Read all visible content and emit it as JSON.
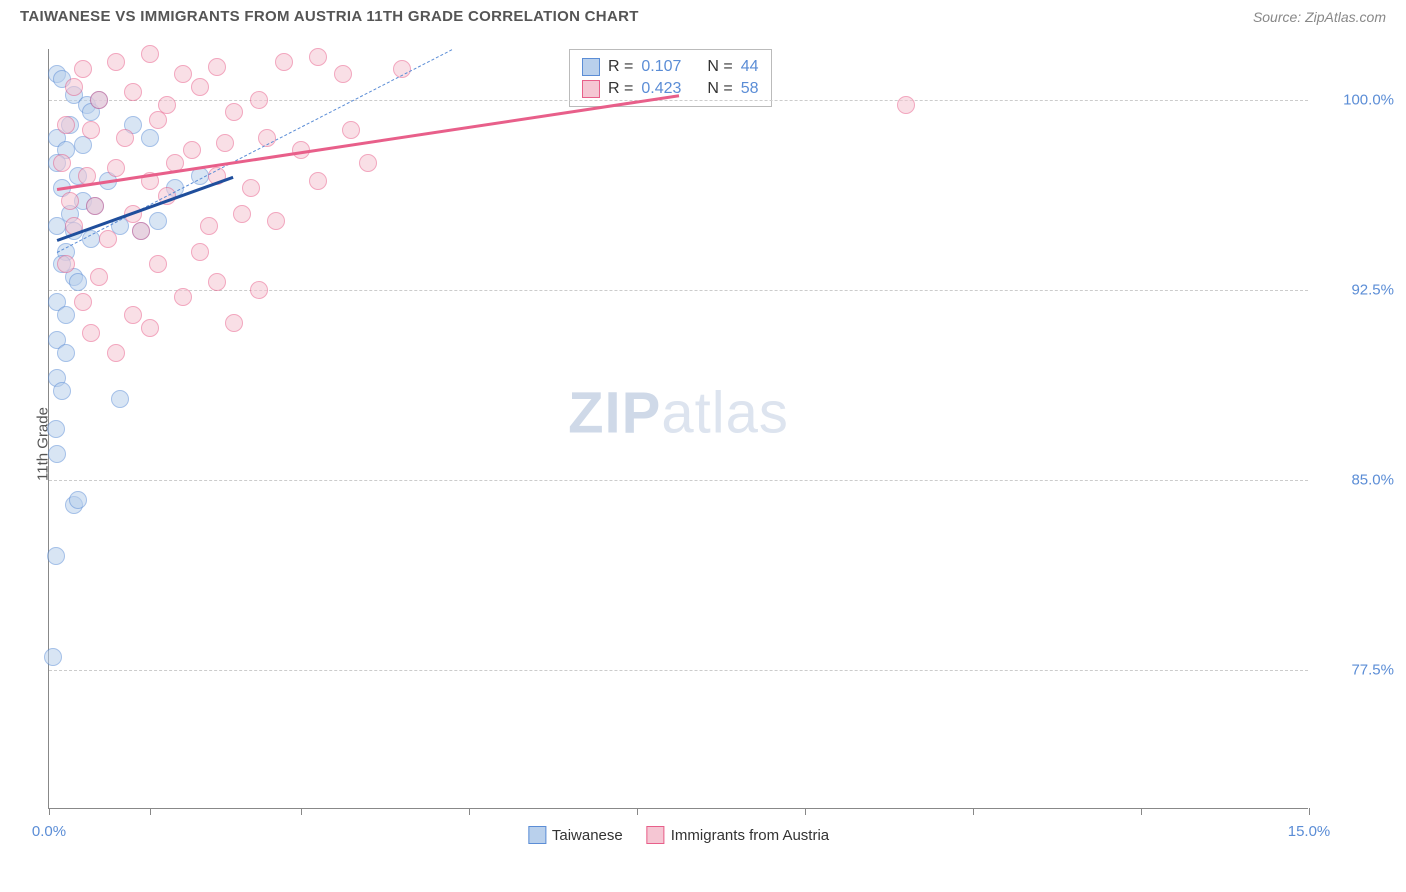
{
  "header": {
    "title": "TAIWANESE VS IMMIGRANTS FROM AUSTRIA 11TH GRADE CORRELATION CHART",
    "source_label": "Source: ZipAtlas.com"
  },
  "chart": {
    "type": "scatter",
    "ylabel": "11th Grade",
    "xlim": [
      0.0,
      15.0
    ],
    "ylim": [
      72.0,
      102.0
    ],
    "grid_color": "#cccccc",
    "axis_color": "#888888",
    "background_color": "#ffffff",
    "ytick_labels": [
      "77.5%",
      "85.0%",
      "92.5%",
      "100.0%"
    ],
    "ytick_values": [
      77.5,
      85.0,
      92.5,
      100.0
    ],
    "xtick_values": [
      0,
      1.2,
      3.0,
      5.0,
      7.0,
      9.0,
      11.0,
      13.0,
      15.0
    ],
    "xtick_labels": {
      "left": "0.0%",
      "right": "15.0%"
    },
    "watermark": "ZIPatlas",
    "series": [
      {
        "name": "Taiwanese",
        "fill": "#b9d0ec",
        "stroke": "#5b8dd6",
        "R": "0.107",
        "N": "44",
        "trend": {
          "x1": 0.1,
          "y1": 94.5,
          "x2": 2.2,
          "y2": 97.0,
          "color": "#1f4e9c"
        },
        "points": [
          [
            0.1,
            101.0
          ],
          [
            0.15,
            100.8
          ],
          [
            0.3,
            100.2
          ],
          [
            0.45,
            99.8
          ],
          [
            0.25,
            99.0
          ],
          [
            0.5,
            99.5
          ],
          [
            0.1,
            98.5
          ],
          [
            0.2,
            98.0
          ],
          [
            0.4,
            98.2
          ],
          [
            0.6,
            100.0
          ],
          [
            0.1,
            97.5
          ],
          [
            0.35,
            97.0
          ],
          [
            0.15,
            96.5
          ],
          [
            0.4,
            96.0
          ],
          [
            0.25,
            95.5
          ],
          [
            0.55,
            95.8
          ],
          [
            0.1,
            95.0
          ],
          [
            0.3,
            94.8
          ],
          [
            0.5,
            94.5
          ],
          [
            0.7,
            96.8
          ],
          [
            0.2,
            94.0
          ],
          [
            0.85,
            95.0
          ],
          [
            1.1,
            94.8
          ],
          [
            1.3,
            95.2
          ],
          [
            0.15,
            93.5
          ],
          [
            0.3,
            93.0
          ],
          [
            0.1,
            92.0
          ],
          [
            0.2,
            91.5
          ],
          [
            0.35,
            92.8
          ],
          [
            0.1,
            90.5
          ],
          [
            0.2,
            90.0
          ],
          [
            0.1,
            89.0
          ],
          [
            0.15,
            88.5
          ],
          [
            0.08,
            87.0
          ],
          [
            0.85,
            88.2
          ],
          [
            0.1,
            86.0
          ],
          [
            0.3,
            84.0
          ],
          [
            0.35,
            84.2
          ],
          [
            0.08,
            82.0
          ],
          [
            0.05,
            78.0
          ],
          [
            1.5,
            96.5
          ],
          [
            1.8,
            97.0
          ],
          [
            1.0,
            99.0
          ],
          [
            1.2,
            98.5
          ]
        ]
      },
      {
        "name": "Immigrants from Austria",
        "fill": "#f5c6d3",
        "stroke": "#e85f8a",
        "R": "0.423",
        "N": "58",
        "trend": {
          "x1": 0.1,
          "y1": 96.5,
          "x2": 7.5,
          "y2": 100.2,
          "color": "#e85f8a"
        },
        "points": [
          [
            0.4,
            101.2
          ],
          [
            0.8,
            101.5
          ],
          [
            1.2,
            101.8
          ],
          [
            1.6,
            101.0
          ],
          [
            2.0,
            101.3
          ],
          [
            2.8,
            101.5
          ],
          [
            3.2,
            101.7
          ],
          [
            3.5,
            101.0
          ],
          [
            4.2,
            101.2
          ],
          [
            0.3,
            100.5
          ],
          [
            0.6,
            100.0
          ],
          [
            1.0,
            100.3
          ],
          [
            1.4,
            99.8
          ],
          [
            1.8,
            100.5
          ],
          [
            2.2,
            99.5
          ],
          [
            2.5,
            100.0
          ],
          [
            0.2,
            99.0
          ],
          [
            0.5,
            98.8
          ],
          [
            0.9,
            98.5
          ],
          [
            1.3,
            99.2
          ],
          [
            1.7,
            98.0
          ],
          [
            2.1,
            98.3
          ],
          [
            2.6,
            98.5
          ],
          [
            3.0,
            98.0
          ],
          [
            3.6,
            98.8
          ],
          [
            0.15,
            97.5
          ],
          [
            0.45,
            97.0
          ],
          [
            0.8,
            97.3
          ],
          [
            1.2,
            96.8
          ],
          [
            1.5,
            97.5
          ],
          [
            2.0,
            97.0
          ],
          [
            2.4,
            96.5
          ],
          [
            3.2,
            96.8
          ],
          [
            0.25,
            96.0
          ],
          [
            0.55,
            95.8
          ],
          [
            1.0,
            95.5
          ],
          [
            1.4,
            96.2
          ],
          [
            1.9,
            95.0
          ],
          [
            2.3,
            95.5
          ],
          [
            0.3,
            95.0
          ],
          [
            0.7,
            94.5
          ],
          [
            1.1,
            94.8
          ],
          [
            1.8,
            94.0
          ],
          [
            2.7,
            95.2
          ],
          [
            0.2,
            93.5
          ],
          [
            0.6,
            93.0
          ],
          [
            1.3,
            93.5
          ],
          [
            2.0,
            92.8
          ],
          [
            2.5,
            92.5
          ],
          [
            0.4,
            92.0
          ],
          [
            1.0,
            91.5
          ],
          [
            1.6,
            92.2
          ],
          [
            0.5,
            90.8
          ],
          [
            1.2,
            91.0
          ],
          [
            2.2,
            91.2
          ],
          [
            0.8,
            90.0
          ],
          [
            10.2,
            99.8
          ],
          [
            3.8,
            97.5
          ]
        ]
      }
    ],
    "identity_line": {
      "x1": 0.1,
      "y1": 94.0,
      "x2": 4.8,
      "y2": 102.0,
      "color": "#5b8dd6"
    },
    "top_legend": {
      "rows": [
        {
          "swatch_fill": "#b9d0ec",
          "swatch_stroke": "#5b8dd6",
          "R_label": "R =",
          "R": "0.107",
          "N_label": "N =",
          "N": "44"
        },
        {
          "swatch_fill": "#f5c6d3",
          "swatch_stroke": "#e85f8a",
          "R_label": "R =",
          "R": "0.423",
          "N_label": "N =",
          "N": "58"
        }
      ]
    },
    "bottom_legend": [
      {
        "swatch_fill": "#b9d0ec",
        "swatch_stroke": "#5b8dd6",
        "label": "Taiwanese"
      },
      {
        "swatch_fill": "#f5c6d3",
        "swatch_stroke": "#e85f8a",
        "label": "Immigrants from Austria"
      }
    ]
  }
}
